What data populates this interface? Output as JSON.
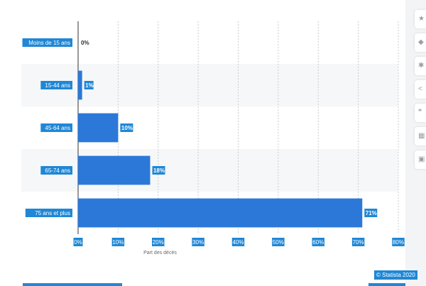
{
  "chart_data": {
    "type": "bar",
    "orientation": "horizontal",
    "categories": [
      "Moins de 15 ans",
      "15-44 ans",
      "45-64 ans",
      "65-74 ans",
      "75 ans et plus"
    ],
    "values": [
      0,
      1,
      10,
      18,
      71
    ],
    "value_labels": [
      "0%",
      "1%",
      "10%",
      "18%",
      "71%"
    ],
    "xlabel": "Part des décès",
    "xlim": [
      0,
      80
    ],
    "xticks": [
      "0%",
      "10%",
      "20%",
      "30%",
      "40%",
      "50%",
      "60%",
      "70%",
      "80%"
    ],
    "grid": "vertical dashed",
    "bar_color": "#2b78d8",
    "label_color": "#1f87d6"
  },
  "sidebar": {
    "icons": [
      "star-icon",
      "bell-icon",
      "gear-icon",
      "share-icon",
      "quote-icon",
      "flag-icon",
      "print-icon"
    ]
  },
  "credit": "© Statista 2020"
}
